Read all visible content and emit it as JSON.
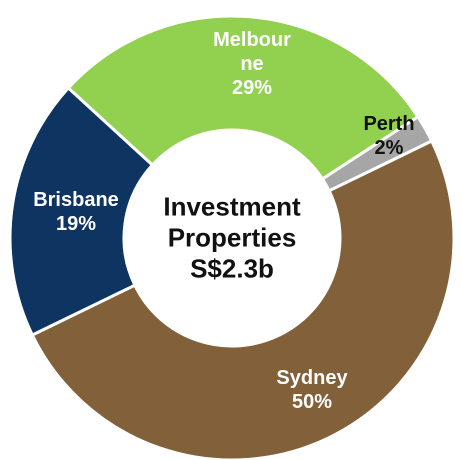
{
  "chart_data": {
    "type": "donut",
    "title": "Investment Properties S$2.3b",
    "categories": [
      "Melbourne",
      "Perth",
      "Sydney",
      "Brisbane"
    ],
    "values": [
      29,
      2,
      50,
      19
    ],
    "value_labels": [
      "29%",
      "2%",
      "50%",
      "19%"
    ],
    "colors": [
      "#92d050",
      "#a6a6a6",
      "#82603a",
      "#0e3462"
    ]
  }
}
